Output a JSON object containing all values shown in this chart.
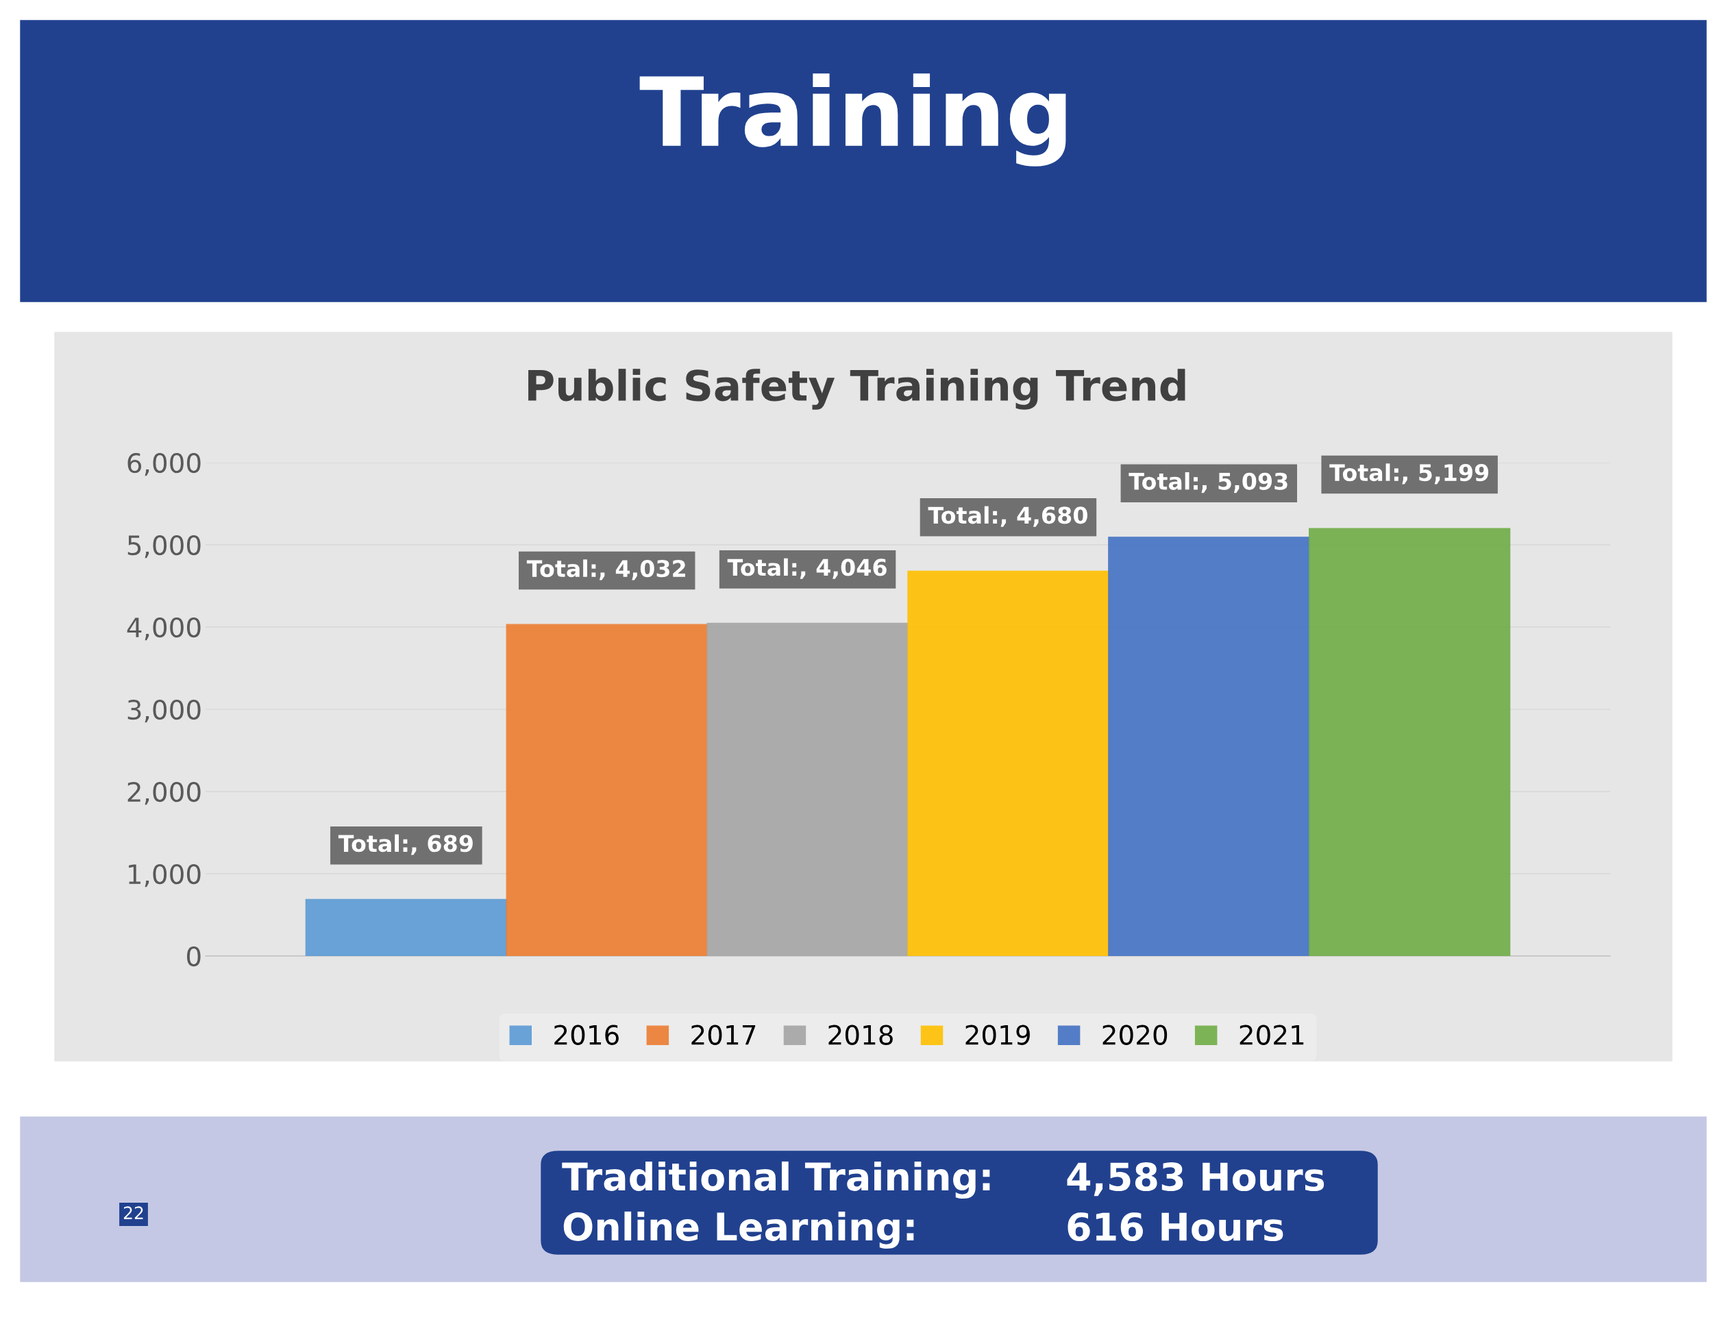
{
  "chart_data": {
    "type": "bar",
    "title": "Training",
    "subtitle": "Public Safety Training Trend",
    "categories": [
      null,
      null,
      null,
      null,
      null,
      null
    ],
    "series": [
      {
        "name": "2016",
        "color": "#5b9bd5",
        "values": [
          689,
          null,
          null,
          null,
          null,
          null
        ],
        "value_labels": [
          "Total:, 689",
          null,
          null,
          null,
          null,
          null
        ]
      },
      {
        "name": "2017",
        "color": "#ed7d31",
        "values": [
          null,
          4032,
          null,
          null,
          null,
          null
        ],
        "value_labels": [
          null,
          "Total:, 4,032",
          null,
          null,
          null,
          null
        ]
      },
      {
        "name": "2018",
        "color": "#a5a5a5",
        "values": [
          null,
          null,
          4046,
          null,
          null,
          null
        ],
        "value_labels": [
          null,
          null,
          "Total:, 4,046",
          null,
          null,
          null
        ]
      },
      {
        "name": "2019",
        "color": "#ffc000",
        "values": [
          null,
          null,
          null,
          4680,
          null,
          null
        ],
        "value_labels": [
          null,
          null,
          null,
          "Total:, 4,680",
          null,
          null
        ]
      },
      {
        "name": "2020",
        "color": "#4472c4",
        "values": [
          null,
          null,
          null,
          null,
          5093,
          null
        ],
        "value_labels": [
          null,
          null,
          null,
          null,
          "Total:, 5,093",
          null
        ]
      },
      {
        "name": "2021",
        "color": "#70ad47",
        "values": [
          null,
          null,
          null,
          null,
          null,
          5199
        ],
        "value_labels": [
          null,
          null,
          null,
          null,
          null,
          "Total:, 5,199"
        ]
      }
    ],
    "ylim": [
      0,
      6000
    ],
    "yticks": [
      {
        "value": 0,
        "label": "0"
      },
      {
        "value": 1000,
        "label": "1,000"
      },
      {
        "value": 2000,
        "label": "2,000"
      },
      {
        "value": 3000,
        "label": "3,000"
      },
      {
        "value": 4000,
        "label": "4,000"
      },
      {
        "value": 5000,
        "label": "5,000"
      },
      {
        "value": 6000,
        "label": "6,000"
      }
    ],
    "grid": "y",
    "legend": "bottom",
    "annotations": [
      "Traditional Training:",
      "4,583 Hours",
      "Online Learning:",
      "616 Hours",
      "22"
    ]
  }
}
